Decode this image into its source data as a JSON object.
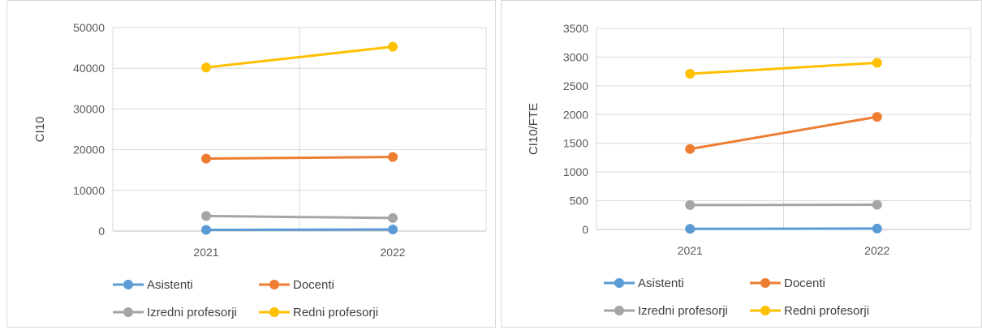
{
  "charts": [
    {
      "chart_data": {
        "type": "line",
        "x": [
          "2021",
          "2022"
        ],
        "xlabel": "",
        "ylabel": "CI10",
        "ylim": [
          0,
          50000
        ],
        "yticks": [
          0,
          10000,
          20000,
          30000,
          40000,
          50000
        ],
        "grid": true,
        "legend_position": "bottom",
        "series": [
          {
            "name": "Asistenti",
            "values": [
              300,
              400
            ],
            "color": "#5b9bd5"
          },
          {
            "name": "Docenti",
            "values": [
              17800,
              18200
            ],
            "color": "#ed7d31"
          },
          {
            "name": "Izredni profesorji",
            "values": [
              3700,
              3200
            ],
            "color": "#a5a5a5"
          },
          {
            "name": "Redni profesorji",
            "values": [
              40200,
              45300
            ],
            "color": "#ffc000"
          }
        ]
      }
    },
    {
      "chart_data": {
        "type": "line",
        "x": [
          "2021",
          "2022"
        ],
        "xlabel": "",
        "ylabel": "CI10/FTE",
        "ylim": [
          0,
          3500
        ],
        "yticks": [
          0,
          500,
          1000,
          1500,
          2000,
          2500,
          3000,
          3500
        ],
        "grid": true,
        "legend_position": "bottom",
        "series": [
          {
            "name": "Asistenti",
            "values": [
              10,
              15
            ],
            "color": "#5b9bd5"
          },
          {
            "name": "Docenti",
            "values": [
              1400,
              1960
            ],
            "color": "#ed7d31"
          },
          {
            "name": "Izredni profesorji",
            "values": [
              425,
              430
            ],
            "color": "#a5a5a5"
          },
          {
            "name": "Redni profesorji",
            "values": [
              2710,
              2900
            ],
            "color": "#ffc000"
          }
        ]
      }
    }
  ]
}
